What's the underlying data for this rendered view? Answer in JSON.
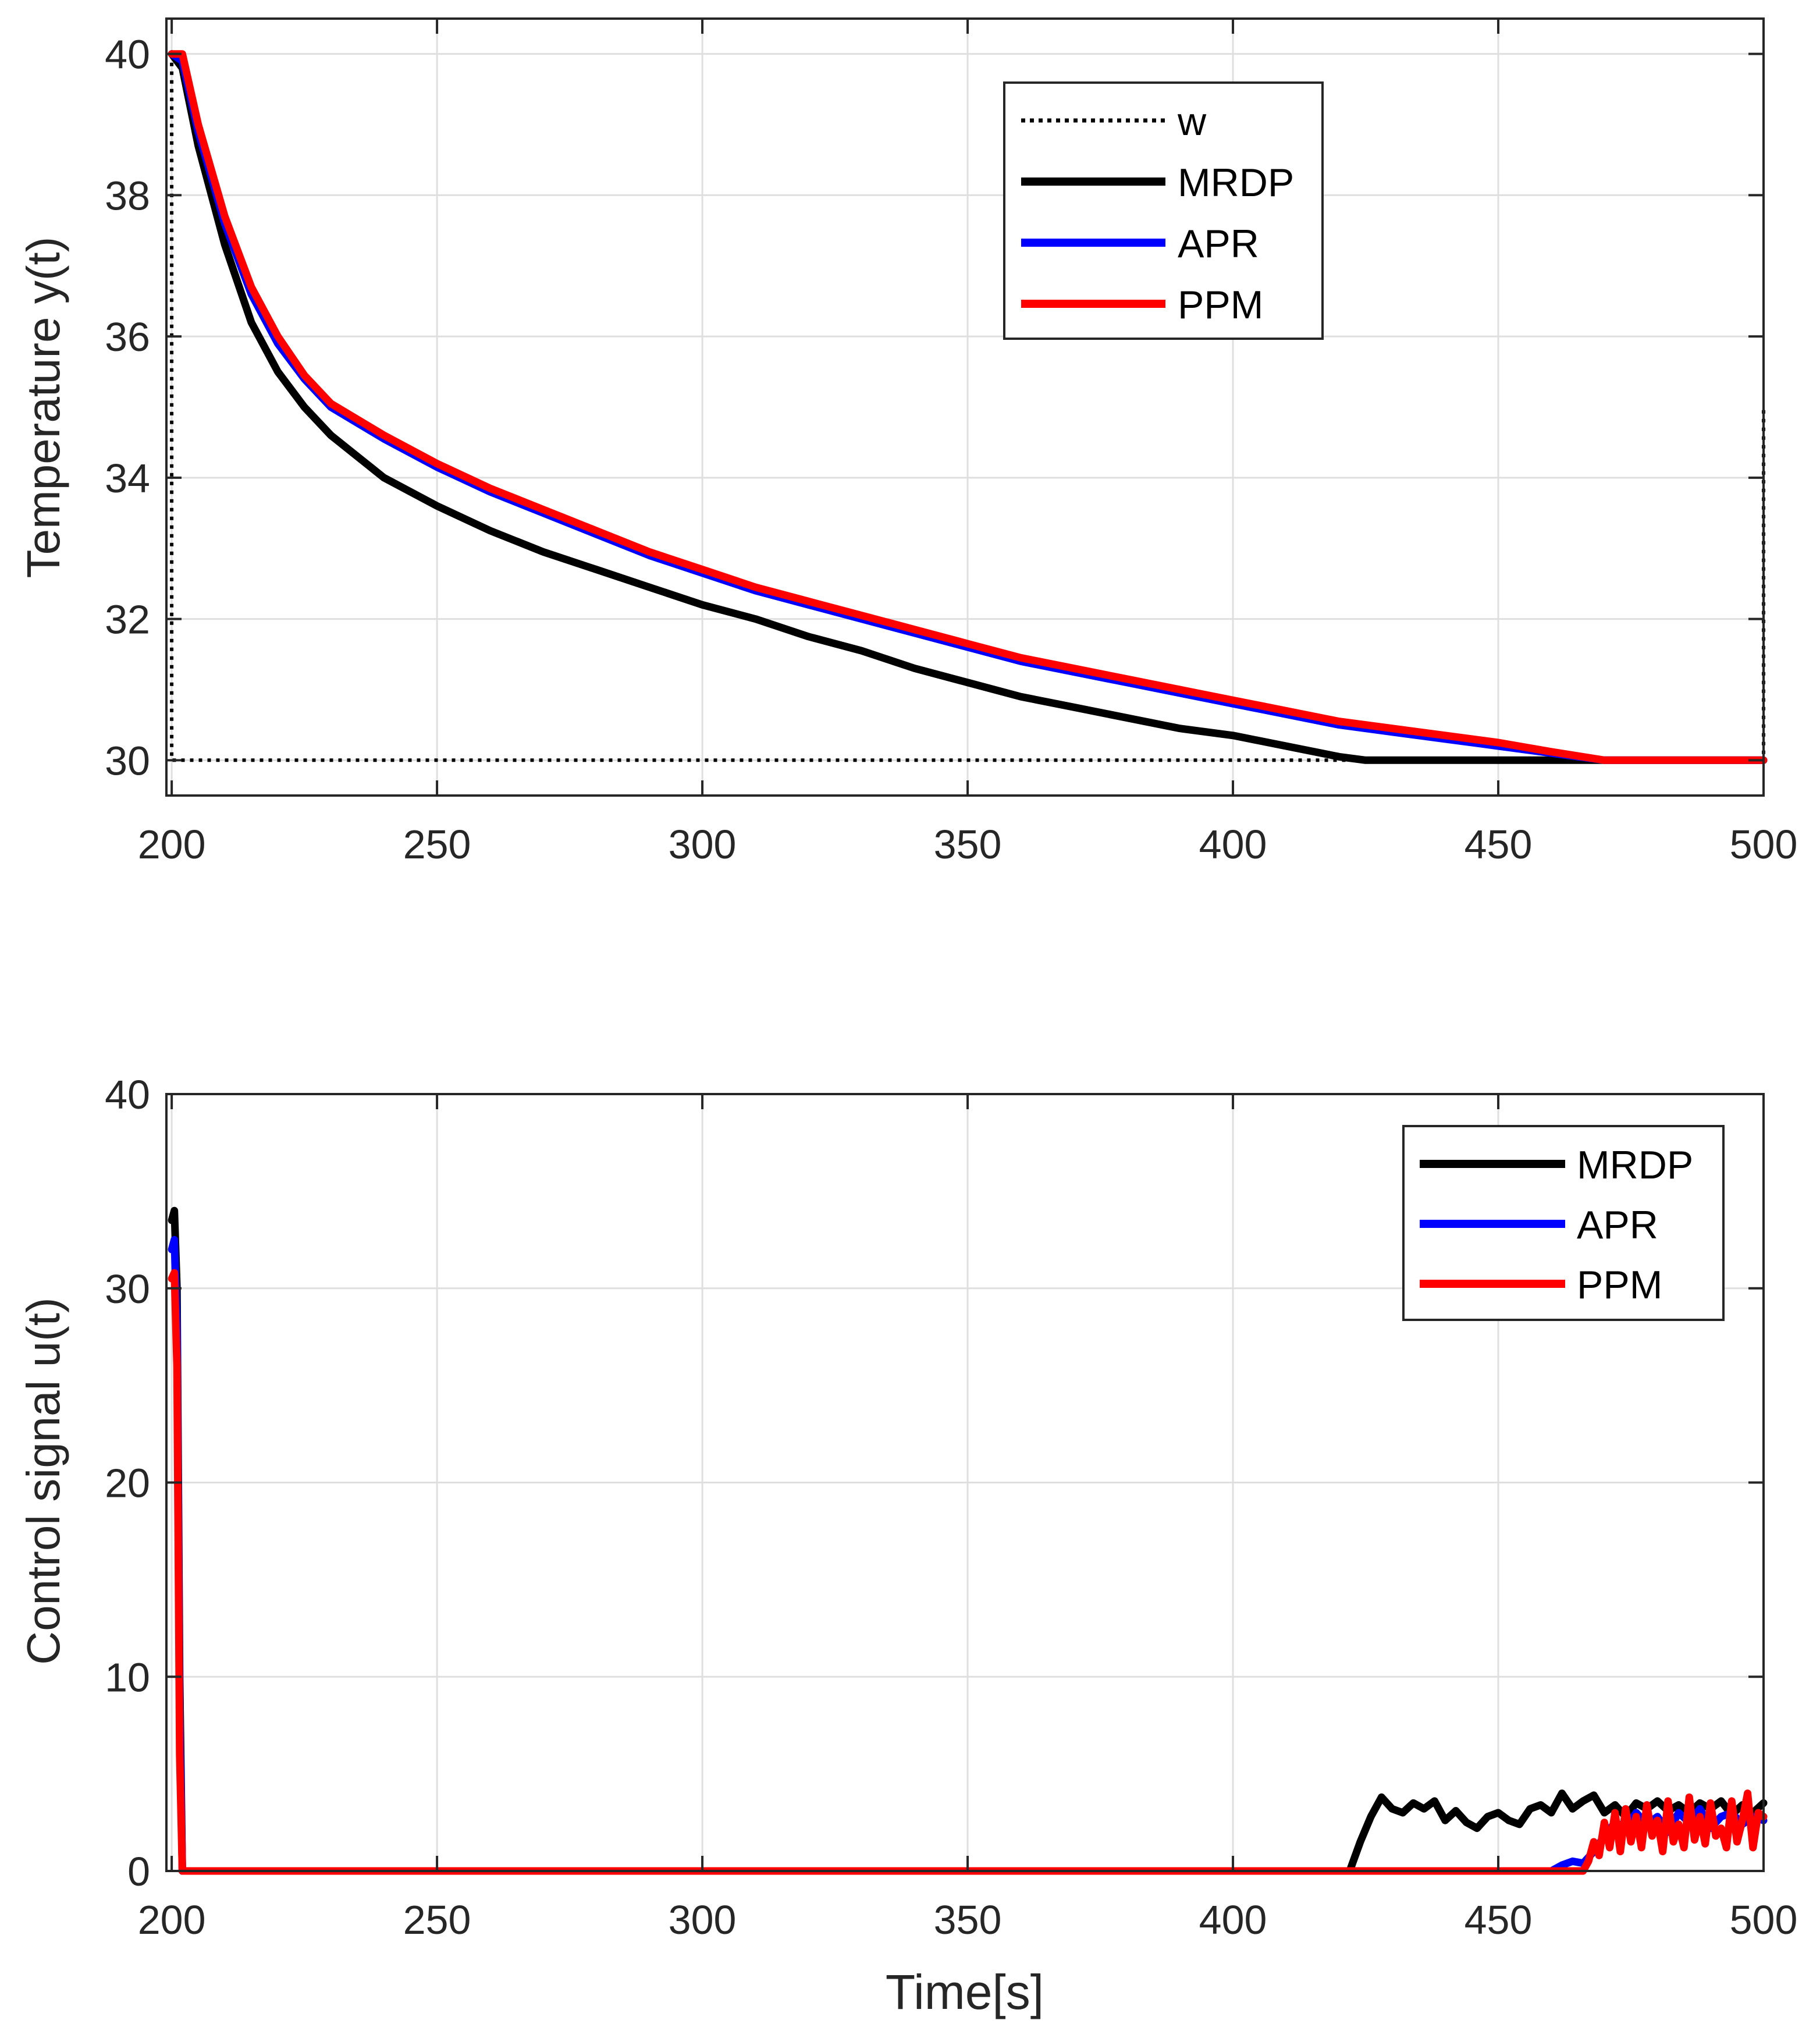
{
  "chart_data": [
    {
      "type": "line",
      "title": "",
      "xlabel": "",
      "ylabel": "Temperature y(t)",
      "xlim": [
        199,
        500
      ],
      "ylim": [
        29.5,
        40.5
      ],
      "xticks": [
        200,
        250,
        300,
        350,
        400,
        450,
        500
      ],
      "yticks": [
        30,
        32,
        34,
        36,
        38,
        40
      ],
      "xtick_labels": [
        "200",
        "250",
        "300",
        "350",
        "400",
        "450",
        "500"
      ],
      "ytick_labels": [
        "30",
        "32",
        "34",
        "36",
        "38",
        "40"
      ],
      "grid": true,
      "legend_position": "top-center",
      "series": [
        {
          "name": "w",
          "color": "#000000",
          "style": "dotted",
          "x": [
            200,
            200,
            500,
            500
          ],
          "y": [
            40,
            30,
            30,
            35
          ]
        },
        {
          "name": "MRDP",
          "color": "#000000",
          "style": "solid",
          "x": [
            200,
            202,
            205,
            210,
            215,
            220,
            225,
            230,
            240,
            250,
            260,
            270,
            280,
            290,
            300,
            310,
            320,
            330,
            340,
            350,
            360,
            370,
            380,
            390,
            400,
            410,
            420,
            425,
            430,
            440,
            450,
            460,
            470,
            480,
            490,
            500
          ],
          "y": [
            40,
            39.8,
            38.7,
            37.3,
            36.2,
            35.5,
            35.0,
            34.6,
            34.0,
            33.6,
            33.25,
            32.95,
            32.7,
            32.45,
            32.2,
            32.0,
            31.75,
            31.55,
            31.3,
            31.1,
            30.9,
            30.75,
            30.6,
            30.45,
            30.35,
            30.2,
            30.05,
            30.0,
            30.0,
            30.0,
            30.0,
            30.0,
            30.0,
            30.0,
            30.0,
            30.0
          ]
        },
        {
          "name": "APR",
          "color": "#0000ff",
          "style": "solid",
          "x": [
            200,
            202,
            205,
            210,
            215,
            220,
            225,
            230,
            240,
            250,
            260,
            270,
            280,
            290,
            300,
            310,
            320,
            330,
            340,
            350,
            360,
            370,
            380,
            390,
            400,
            410,
            420,
            430,
            440,
            450,
            460,
            470,
            480,
            490,
            500
          ],
          "y": [
            40,
            39.9,
            38.9,
            37.6,
            36.6,
            35.9,
            35.4,
            35.0,
            34.55,
            34.15,
            33.8,
            33.5,
            33.2,
            32.9,
            32.65,
            32.4,
            32.2,
            32.0,
            31.8,
            31.6,
            31.4,
            31.25,
            31.1,
            30.95,
            30.8,
            30.65,
            30.5,
            30.4,
            30.3,
            30.2,
            30.1,
            30.0,
            30.0,
            30.0,
            30.0
          ]
        },
        {
          "name": "PPM",
          "color": "#ff0000",
          "style": "solid",
          "x": [
            200,
            202,
            205,
            210,
            215,
            220,
            225,
            230,
            240,
            250,
            260,
            270,
            280,
            290,
            300,
            310,
            320,
            330,
            340,
            350,
            360,
            370,
            380,
            390,
            400,
            410,
            420,
            430,
            440,
            450,
            460,
            470,
            480,
            490,
            500
          ],
          "y": [
            40,
            40,
            39.0,
            37.7,
            36.7,
            36.0,
            35.45,
            35.05,
            34.6,
            34.2,
            33.85,
            33.55,
            33.25,
            32.95,
            32.7,
            32.45,
            32.25,
            32.05,
            31.85,
            31.65,
            31.45,
            31.3,
            31.15,
            31.0,
            30.85,
            30.7,
            30.55,
            30.45,
            30.35,
            30.25,
            30.12,
            30.0,
            30.0,
            30.0,
            30.0
          ]
        }
      ]
    },
    {
      "type": "line",
      "title": "",
      "xlabel": "Time[s]",
      "ylabel": "Control signal u(t)",
      "xlim": [
        199,
        500
      ],
      "ylim": [
        0,
        40
      ],
      "xticks": [
        200,
        250,
        300,
        350,
        400,
        450,
        500
      ],
      "yticks": [
        0,
        10,
        20,
        30,
        40
      ],
      "xtick_labels": [
        "200",
        "250",
        "300",
        "350",
        "400",
        "450",
        "500"
      ],
      "ytick_labels": [
        "0",
        "10",
        "20",
        "30",
        "40"
      ],
      "grid": true,
      "legend_position": "top-right",
      "series": [
        {
          "name": "MRDP",
          "color": "#000000",
          "style": "solid",
          "x": [
            200,
            200.5,
            201,
            201.5,
            202,
            300,
            422,
            424,
            426,
            428,
            430,
            432,
            434,
            436,
            438,
            440,
            442,
            444,
            446,
            448,
            450,
            452,
            454,
            456,
            458,
            460,
            462,
            464,
            466,
            468,
            470,
            472,
            474,
            476,
            478,
            480,
            482,
            484,
            486,
            488,
            490,
            492,
            494,
            496,
            498,
            500
          ],
          "y": [
            33.5,
            34,
            30,
            10,
            0,
            0,
            0,
            1.5,
            2.8,
            3.8,
            3.2,
            3.0,
            3.5,
            3.2,
            3.6,
            2.6,
            3.1,
            2.5,
            2.2,
            2.8,
            3.0,
            2.6,
            2.4,
            3.2,
            3.4,
            3.0,
            4.0,
            3.2,
            3.6,
            3.9,
            3.0,
            3.4,
            2.8,
            3.5,
            3.2,
            3.6,
            3.1,
            3.4,
            3.0,
            3.5,
            3.2,
            3.6,
            2.9,
            3.4,
            3.0,
            3.5
          ]
        },
        {
          "name": "APR",
          "color": "#0000ff",
          "style": "solid",
          "x": [
            200,
            200.5,
            201,
            201.5,
            202,
            300,
            460,
            462,
            464,
            466,
            468,
            470,
            472,
            474,
            476,
            478,
            480,
            482,
            484,
            486,
            488,
            490,
            492,
            494,
            496,
            498,
            500
          ],
          "y": [
            32,
            32.5,
            28,
            8,
            0,
            0,
            0,
            0.3,
            0.5,
            0.4,
            1.0,
            1.8,
            2.5,
            2.2,
            3.0,
            2.4,
            2.8,
            2.0,
            3.0,
            2.5,
            3.2,
            2.2,
            2.8,
            3.0,
            2.4,
            2.8,
            2.6
          ]
        },
        {
          "name": "PPM",
          "color": "#ff0000",
          "style": "solid",
          "x": [
            200,
            200.5,
            201,
            201.5,
            202,
            300,
            466,
            467,
            468,
            469,
            470,
            471,
            472,
            473,
            474,
            475,
            476,
            477,
            478,
            479,
            480,
            481,
            482,
            483,
            484,
            485,
            486,
            487,
            488,
            489,
            490,
            491,
            492,
            493,
            494,
            495,
            496,
            497,
            498,
            499,
            500
          ],
          "y": [
            30.5,
            30.8,
            26,
            6,
            0,
            0,
            0,
            0.5,
            1.5,
            0.8,
            2.5,
            1.2,
            3.0,
            1.0,
            3.2,
            1.5,
            2.8,
            1.2,
            3.4,
            1.8,
            2.6,
            1.0,
            3.6,
            1.5,
            2.4,
            1.2,
            3.8,
            1.6,
            2.8,
            1.4,
            3.5,
            1.8,
            2.2,
            1.2,
            3.6,
            1.5,
            2.6,
            4.0,
            1.2,
            3.0,
            2.8
          ]
        }
      ]
    }
  ]
}
